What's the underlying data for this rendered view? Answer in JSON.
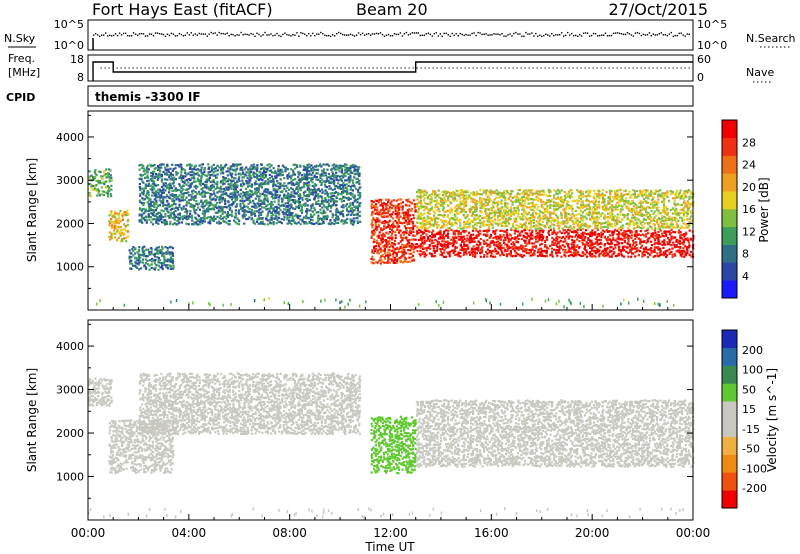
{
  "header": {
    "station": "Fort Hays East (fitACF)",
    "beam": "Beam 20",
    "date": "27/Oct/2015"
  },
  "colors": {
    "power_scale": [
      "#1a1aff",
      "#2a47a8",
      "#2e6f86",
      "#3d9e5a",
      "#7fbf3f",
      "#e8d020",
      "#f0a020",
      "#f07018",
      "#f03010",
      "#f00000"
    ],
    "velocity_scale": [
      "#f00000",
      "#f05010",
      "#f08a10",
      "#f0b040",
      "#c8c8c0",
      "#c8c8c0",
      "#60c830",
      "#3a8a50",
      "#2a6aa8",
      "#1a2ab8"
    ],
    "ground_scatter": "#c8c8c0"
  },
  "panels": {
    "sky": {
      "left_label": "N.Sky",
      "left_ticks": [
        "10^5",
        "10^0"
      ],
      "right_label": "N.Search",
      "right_ticks": [
        "10^5",
        "10^0"
      ]
    },
    "freq": {
      "left_label_1": "Freq.",
      "left_label_2": "[MHz]",
      "left_ticks": [
        "18",
        "8"
      ],
      "right_label": "Nave",
      "right_ticks": [
        "60",
        "0"
      ]
    },
    "cpid": {
      "label": "CPID",
      "text": "themis -3300 IF"
    }
  },
  "chart_data": [
    {
      "type": "heatmap",
      "title": "",
      "variable": "Power",
      "xlabel": "Time UT",
      "ylabel": "Slant Range [km]",
      "xlim_hours": [
        0,
        24
      ],
      "ylim": [
        0,
        4600
      ],
      "yticks": [
        1000,
        2000,
        3000,
        4000
      ],
      "colorbar_label": "Power [dB]",
      "colorbar_ticks": [
        "4",
        "8",
        "12",
        "16",
        "20",
        "24",
        "28"
      ],
      "colorbar_range": [
        0,
        30
      ],
      "regions": [
        {
          "t": [
            0.0,
            0.9
          ],
          "range": [
            2650,
            3300
          ],
          "value": 12
        },
        {
          "t": [
            0.8,
            1.6
          ],
          "range": [
            1600,
            2300
          ],
          "value": 18
        },
        {
          "t": [
            1.6,
            3.4
          ],
          "range": [
            950,
            1500
          ],
          "value": 8
        },
        {
          "t": [
            2.0,
            10.8
          ],
          "range": [
            2000,
            3400
          ],
          "value": 8
        },
        {
          "t": [
            11.2,
            13.0
          ],
          "range": [
            1100,
            2600
          ],
          "value": 26
        },
        {
          "t": [
            13.0,
            24.0
          ],
          "range": [
            1250,
            1900
          ],
          "value": 28
        },
        {
          "t": [
            13.0,
            24.0
          ],
          "range": [
            1900,
            2800
          ],
          "value": 16
        }
      ]
    },
    {
      "type": "heatmap",
      "title": "",
      "variable": "Velocity",
      "xlabel": "Time UT",
      "ylabel": "Slant Range [km]",
      "xlim_hours": [
        0,
        24
      ],
      "ylim": [
        0,
        4600
      ],
      "yticks": [
        1000,
        2000,
        3000,
        4000
      ],
      "xticks": [
        "00:00",
        "04:00",
        "08:00",
        "12:00",
        "16:00",
        "20:00",
        "00:00"
      ],
      "colorbar_label": "Velocity [m s^-1]",
      "colorbar_ticks": [
        "-200",
        "-100",
        "-50",
        "-15",
        "15",
        "50",
        "100",
        "200"
      ],
      "colorbar_range": [
        -250,
        250
      ],
      "regions": [
        {
          "t": [
            0.0,
            0.9
          ],
          "range": [
            2650,
            3300
          ],
          "value": 0
        },
        {
          "t": [
            0.8,
            3.4
          ],
          "range": [
            1100,
            2300
          ],
          "value": 0
        },
        {
          "t": [
            2.0,
            10.8
          ],
          "range": [
            2000,
            3400
          ],
          "value": 0
        },
        {
          "t": [
            11.2,
            13.0
          ],
          "range": [
            1100,
            2400
          ],
          "value": 30
        },
        {
          "t": [
            13.0,
            24.0
          ],
          "range": [
            1250,
            2800
          ],
          "value": 0
        }
      ]
    }
  ],
  "time_series": {
    "nsky_level": 0.75,
    "freq_steps": [
      {
        "t": [
          0.0,
          1.0
        ],
        "mhz": 16
      },
      {
        "t": [
          1.0,
          13.0
        ],
        "mhz": 11
      },
      {
        "t": [
          13.0,
          24.0
        ],
        "mhz": 16
      }
    ],
    "nave_level": 30
  }
}
